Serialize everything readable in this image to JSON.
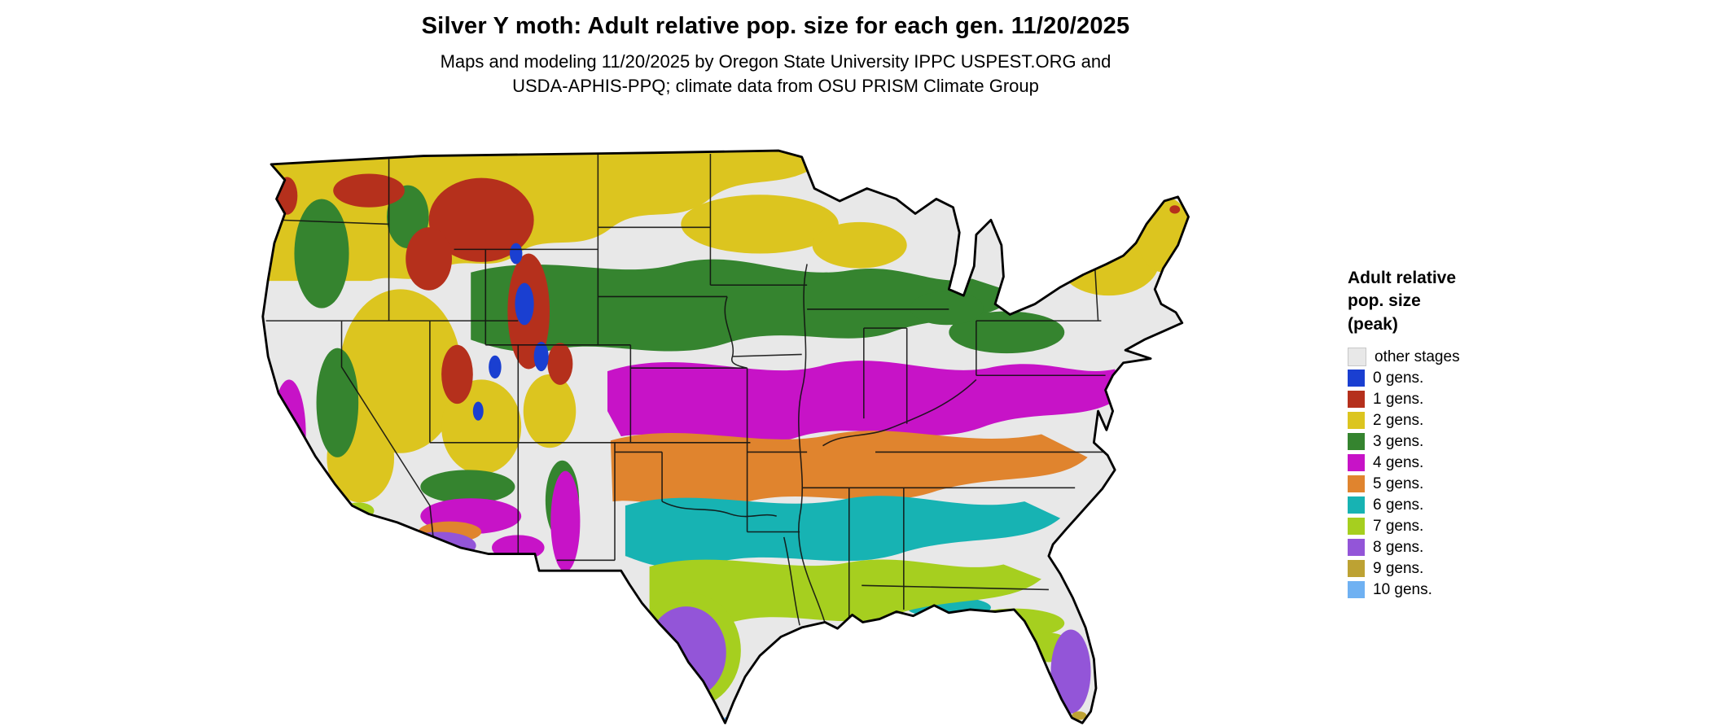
{
  "header": {
    "title": "Silver Y moth: Adult relative pop. size for each gen. 11/20/2025",
    "subtitle_line1": "Maps and modeling 11/20/2025 by Oregon State University IPPC USPEST.ORG and",
    "subtitle_line2": "USDA-APHIS-PPQ; climate data from OSU PRISM Climate Group"
  },
  "legend": {
    "title": "Adult relative\npop. size\n(peak)",
    "items": [
      {
        "label": "other stages",
        "gen": "other",
        "color": "#e8e8e8"
      },
      {
        "label": "0 gens.",
        "gen": "0",
        "color": "#1a3fd1"
      },
      {
        "label": "1 gens.",
        "gen": "1",
        "color": "#b5301c"
      },
      {
        "label": "2 gens.",
        "gen": "2",
        "color": "#dcc51f"
      },
      {
        "label": "3 gens.",
        "gen": "3",
        "color": "#35842f"
      },
      {
        "label": "4 gens.",
        "gen": "4",
        "color": "#c713c7"
      },
      {
        "label": "5 gens.",
        "gen": "5",
        "color": "#e0842e"
      },
      {
        "label": "6 gens.",
        "gen": "6",
        "color": "#17b3b3"
      },
      {
        "label": "7 gens.",
        "gen": "7",
        "color": "#a6cf1f"
      },
      {
        "label": "8 gens.",
        "gen": "8",
        "color": "#9355d8"
      },
      {
        "label": "9 gens.",
        "gen": "9",
        "color": "#bda233"
      },
      {
        "label": "10 gens.",
        "gen": "10",
        "color": "#6fb1f2"
      }
    ]
  },
  "map": {
    "outline_color": "#000000",
    "state_border_color": "#111111"
  }
}
